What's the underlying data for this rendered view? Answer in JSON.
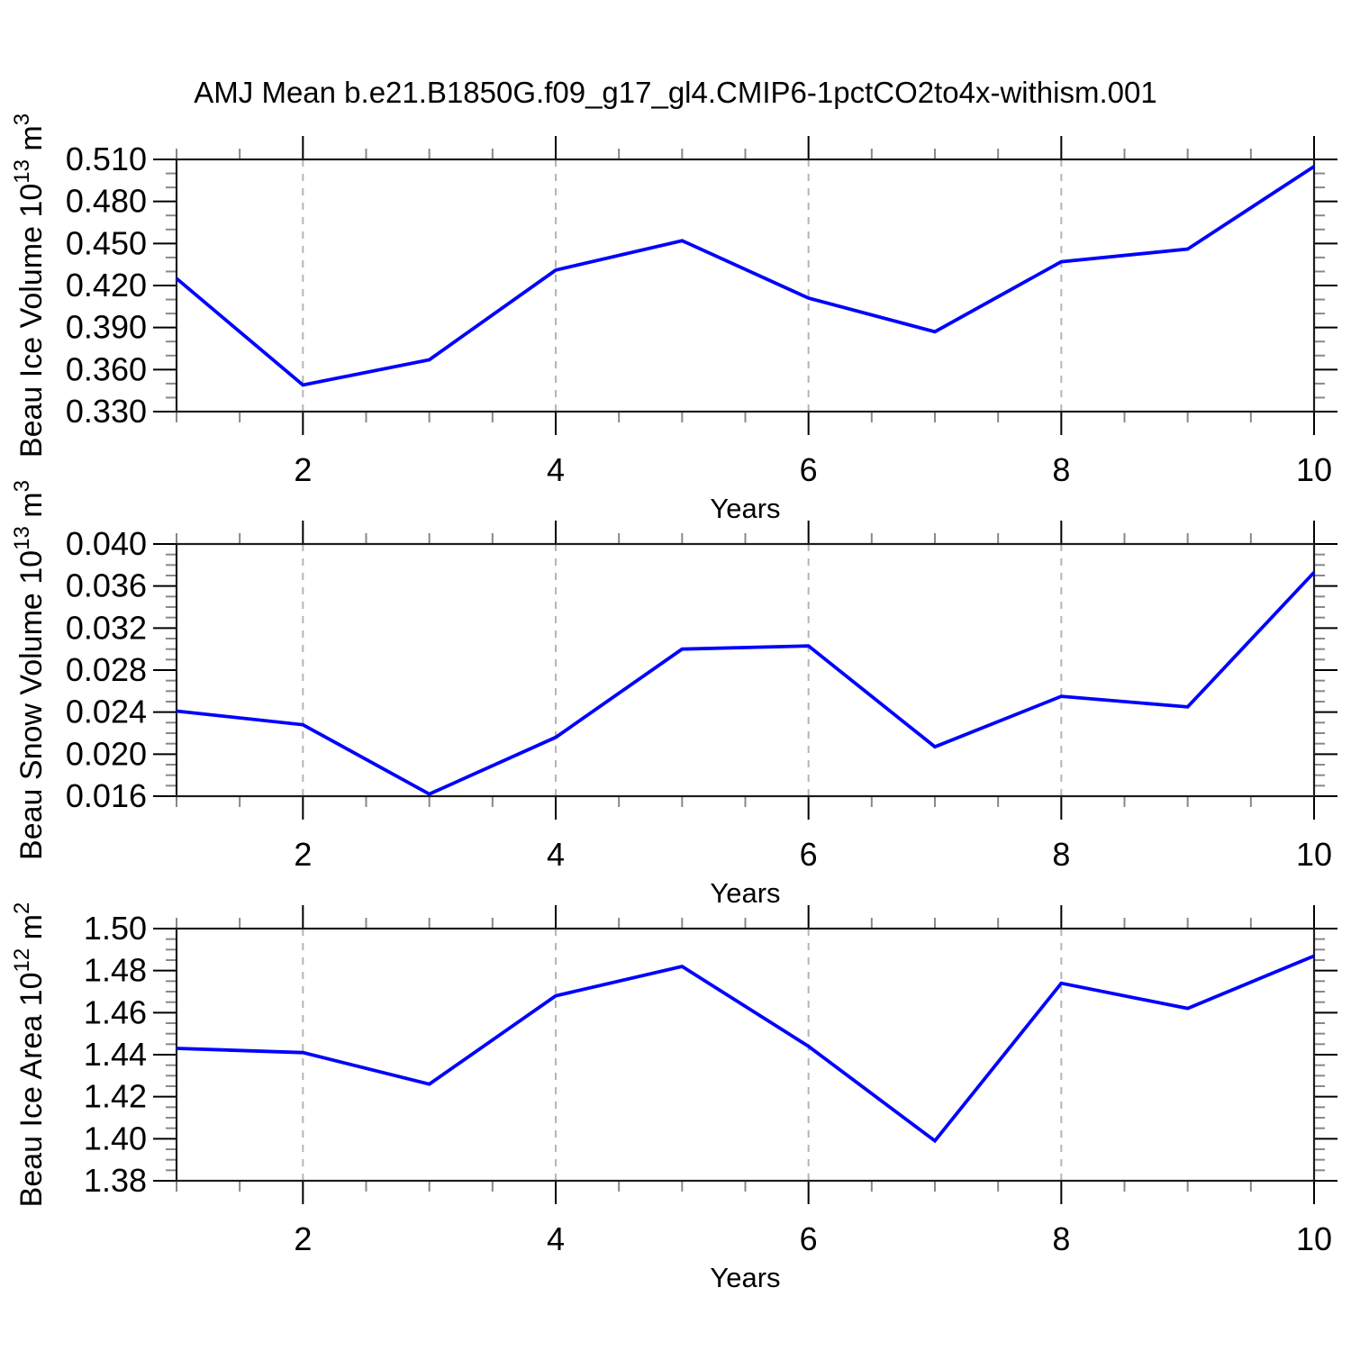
{
  "title": "AMJ Mean b.e21.B1850G.f09_g17_gl4.CMIP6-1pctCO2to4x-withism.001",
  "colors": {
    "line": "#0000ff",
    "grid": "#b5b5b5",
    "frame": "#1c1c1c",
    "tick_major": "#000000",
    "tick_minor": "#888888",
    "text": "#000000",
    "background": "#ffffff"
  },
  "x_axis": {
    "label": "Years",
    "range": [
      1,
      10
    ],
    "tick_values": [
      2,
      4,
      6,
      8,
      10
    ],
    "tick_labels": [
      "2",
      "4",
      "6",
      "8",
      "10"
    ],
    "minor_step": 0.5,
    "grid_values": [
      2,
      4,
      6,
      8
    ],
    "grid_style": "dashed-vertical"
  },
  "chart_data": [
    {
      "type": "line",
      "name": "beau-ice-volume",
      "ylabel_text": "Beau Ice Volume 10^13 m^3",
      "ylabel_segments": [
        {
          "t": "Beau Ice Volume 10"
        },
        {
          "t": "13",
          "sup": true
        },
        {
          "t": " m"
        },
        {
          "t": "3",
          "sup": true
        }
      ],
      "xlabel": "Years",
      "ylim": [
        0.33,
        0.51
      ],
      "ytick_values": [
        0.51,
        0.48,
        0.45,
        0.42,
        0.39,
        0.36,
        0.33
      ],
      "ytick_labels": [
        "0.510",
        "0.480",
        "0.450",
        "0.420",
        "0.390",
        "0.360",
        "0.330"
      ],
      "yminor_step": 0.01,
      "x": [
        1,
        2,
        3,
        4,
        5,
        6,
        7,
        8,
        9,
        10
      ],
      "values": [
        0.425,
        0.349,
        0.367,
        0.431,
        0.452,
        0.411,
        0.387,
        0.437,
        0.446,
        0.505
      ]
    },
    {
      "type": "line",
      "name": "beau-snow-volume",
      "ylabel_text": "Beau Snow Volume 10^13 m^3",
      "ylabel_segments": [
        {
          "t": "Beau Snow Volume 10"
        },
        {
          "t": "13",
          "sup": true
        },
        {
          "t": " m"
        },
        {
          "t": "3",
          "sup": true
        }
      ],
      "xlabel": "Years",
      "ylim": [
        0.016,
        0.04
      ],
      "ytick_values": [
        0.04,
        0.036,
        0.032,
        0.028,
        0.024,
        0.02,
        0.016
      ],
      "ytick_labels": [
        "0.040",
        "0.036",
        "0.032",
        "0.028",
        "0.024",
        "0.020",
        "0.016"
      ],
      "yminor_step": 0.001,
      "x": [
        1,
        2,
        3,
        4,
        5,
        6,
        7,
        8,
        9,
        10
      ],
      "values": [
        0.0241,
        0.0228,
        0.0162,
        0.0216,
        0.03,
        0.0303,
        0.0207,
        0.0255,
        0.0245,
        0.0373
      ]
    },
    {
      "type": "line",
      "name": "beau-ice-area",
      "ylabel_text": "Beau Ice Area 10^12 m^2",
      "ylabel_segments": [
        {
          "t": "Beau Ice Area 10"
        },
        {
          "t": "12",
          "sup": true
        },
        {
          "t": " m"
        },
        {
          "t": "2",
          "sup": true
        }
      ],
      "xlabel": "Years",
      "ylim": [
        1.38,
        1.5
      ],
      "ytick_values": [
        1.5,
        1.48,
        1.46,
        1.44,
        1.42,
        1.4,
        1.38
      ],
      "ytick_labels": [
        "1.50",
        "1.48",
        "1.46",
        "1.44",
        "1.42",
        "1.40",
        "1.38"
      ],
      "yminor_step": 0.005,
      "x": [
        1,
        2,
        3,
        4,
        5,
        6,
        7,
        8,
        9,
        10
      ],
      "values": [
        1.443,
        1.441,
        1.426,
        1.468,
        1.482,
        1.444,
        1.399,
        1.474,
        1.462,
        1.487
      ]
    }
  ]
}
